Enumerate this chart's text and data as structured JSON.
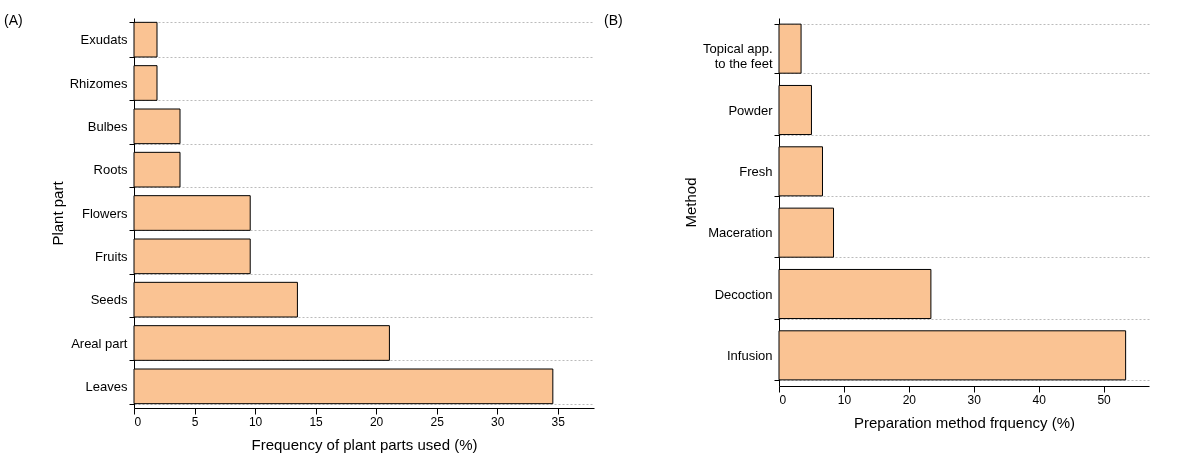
{
  "chart_data": [
    {
      "type": "bar",
      "orientation": "horizontal",
      "xlabel": "Frequency of plant parts used (%)",
      "ylabel": "Plant part",
      "annotations": [
        "(A)"
      ],
      "categories": [
        "Exudats",
        "Rhizomes",
        "Bulbes",
        "Roots",
        "Flowers",
        "Fruits",
        "Seeds",
        "Areal part",
        "Leaves"
      ],
      "values": [
        1.9,
        1.9,
        3.8,
        3.8,
        9.6,
        9.6,
        13.5,
        21.1,
        34.6
      ],
      "color": "#fac393",
      "xlim": [
        0,
        38
      ],
      "xticks": [
        0,
        5,
        10,
        15,
        20,
        25,
        30,
        35
      ],
      "grid": "y"
    },
    {
      "type": "bar",
      "orientation": "horizontal",
      "xlabel": "Preparation method frquency (%)",
      "ylabel": "Method",
      "annotations": [
        "(B)"
      ],
      "categories": [
        "Topical app.\nto the feet",
        "Powder",
        "Fresh",
        "Maceration",
        "Decoction",
        "Infusion"
      ],
      "values": [
        3.4,
        5.0,
        6.7,
        8.4,
        23.4,
        53.4
      ],
      "color": "#fac393",
      "xlim": [
        0,
        57
      ],
      "xticks": [
        0,
        10,
        20,
        30,
        40,
        50
      ],
      "grid": "y"
    }
  ]
}
